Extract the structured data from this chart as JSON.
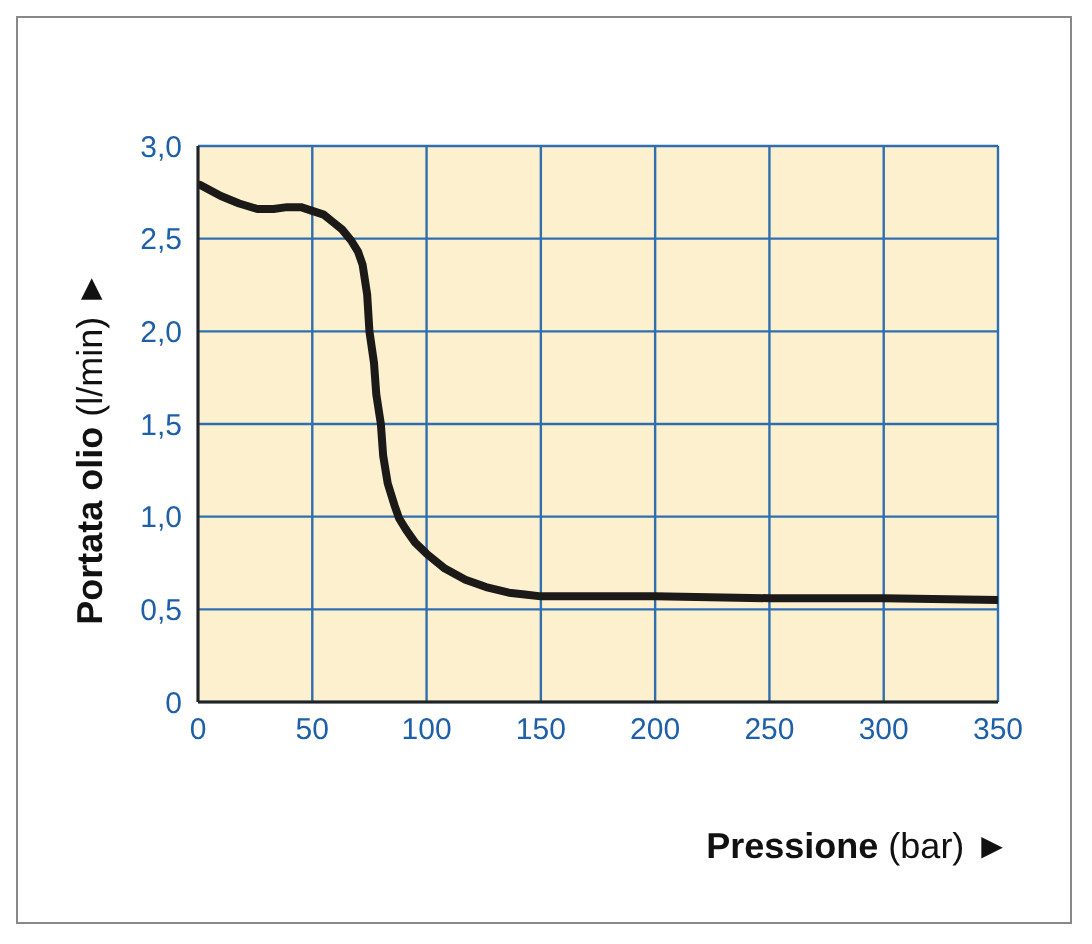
{
  "chart_data": {
    "type": "line",
    "xlabel": "Pressione (bar) ►",
    "ylabel": "Portata olio (l/min) ►",
    "x": [
      1,
      10,
      18,
      26,
      33,
      39,
      45,
      50,
      55,
      59,
      63,
      67,
      70,
      72,
      74,
      75,
      77,
      78,
      80,
      81,
      83,
      86,
      88,
      91,
      95,
      100,
      108,
      117,
      126,
      136,
      143,
      150,
      200,
      250,
      300,
      350
    ],
    "series": [
      {
        "color": "#1c1a19",
        "values": [
          2.79,
          2.73,
          2.69,
          2.66,
          2.66,
          2.67,
          2.67,
          2.65,
          2.63,
          2.59,
          2.55,
          2.49,
          2.43,
          2.36,
          2.2,
          2.0,
          1.83,
          1.66,
          1.5,
          1.33,
          1.18,
          1.06,
          0.99,
          0.93,
          0.86,
          0.8,
          0.72,
          0.66,
          0.62,
          0.59,
          0.58,
          0.57,
          0.57,
          0.56,
          0.56,
          0.55
        ]
      }
    ],
    "xlim": [
      0,
      350
    ],
    "xticks": [
      0,
      50,
      100,
      150,
      200,
      250,
      300,
      350
    ],
    "ylim": [
      0,
      3
    ],
    "yticks": [
      0,
      {
        "value": 0.5,
        "label": "0,5"
      },
      {
        "value": 1,
        "label": "1,0"
      },
      {
        "value": 1.5,
        "label": "1,5"
      },
      {
        "value": 2,
        "label": "2,0"
      },
      {
        "value": 2.5,
        "label": "2,5"
      },
      {
        "value": 3,
        "label": "3,0"
      }
    ],
    "grid": true,
    "marker": "none",
    "line_style": "solid"
  }
}
